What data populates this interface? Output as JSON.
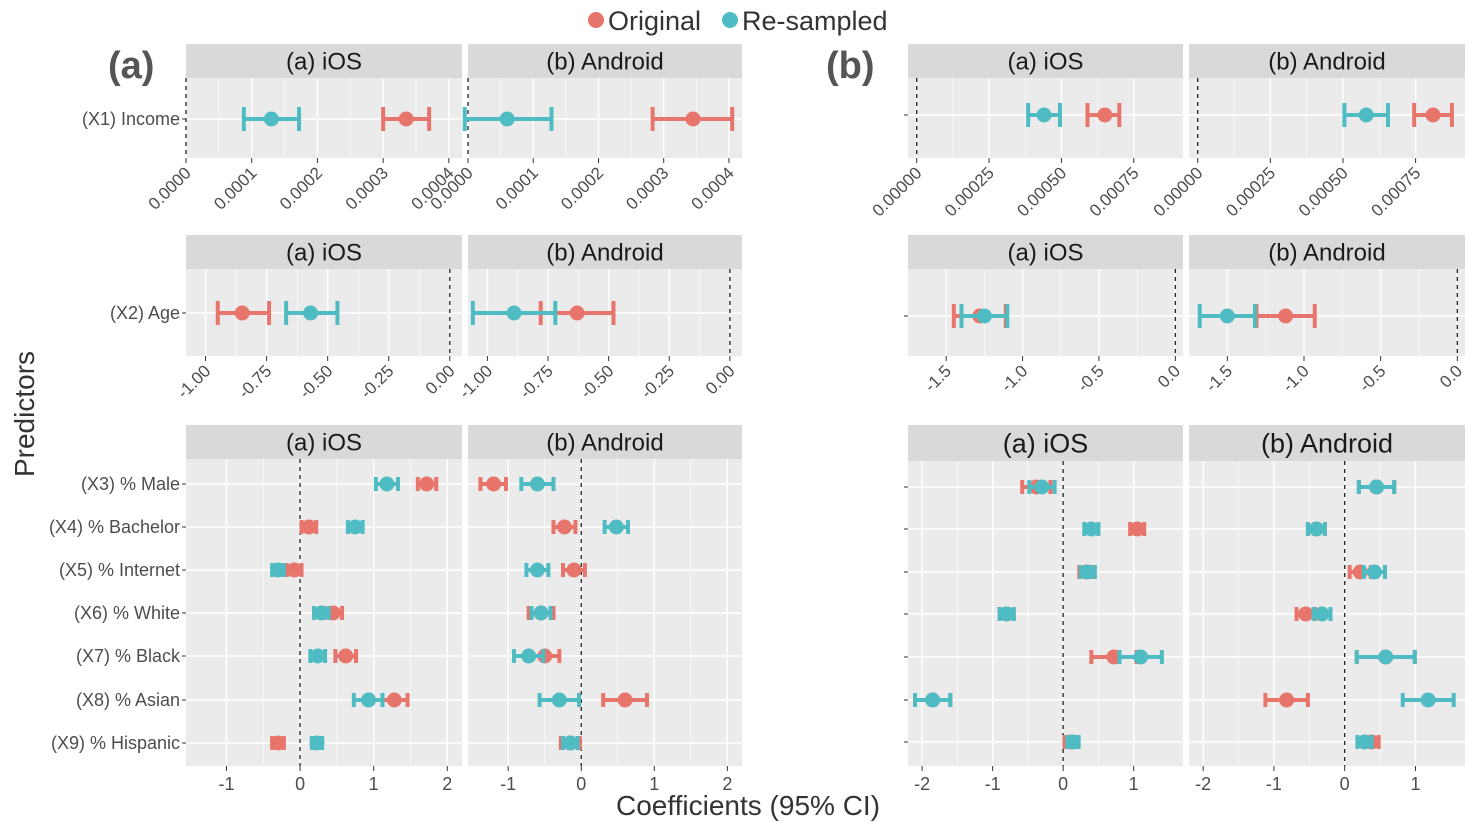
{
  "legend": {
    "items": [
      {
        "label": "Original",
        "color": "#E8756B"
      },
      {
        "label": "Re-sampled",
        "color": "#4FBBC2"
      }
    ]
  },
  "axes_titles": {
    "x": "Coefficients (95% CI)",
    "y": "Predictors"
  },
  "colors": {
    "original": "#E8756B",
    "resampled": "#4FBBC2",
    "panel_bg": "#EBEBEB",
    "strip_bg": "#D9D9D9",
    "grid": "#FFFFFF"
  },
  "chart_data": [
    {
      "group": "(a)",
      "row": "income",
      "type": "scatter",
      "predictors": [
        "(X1) Income"
      ],
      "xlim": [
        -0.0,
        0.00042
      ],
      "ticks": [
        0.0,
        0.0001,
        0.0002,
        0.0003,
        0.0004
      ],
      "tick_labels": [
        "0.0000",
        "0.0001",
        "0.0002",
        "0.0003",
        "0.0004"
      ],
      "facets": [
        {
          "label": "(a) iOS",
          "original": [
            {
              "est": 0.000335,
              "lo": 0.0003,
              "hi": 0.00037
            }
          ],
          "resampled": [
            {
              "est": 0.00013,
              "lo": 8.8e-05,
              "hi": 0.000172
            }
          ]
        },
        {
          "label": "(b) Android",
          "original": [
            {
              "est": 0.000345,
              "lo": 0.000283,
              "hi": 0.000405
            }
          ],
          "resampled": [
            {
              "est": 6e-05,
              "lo": -5e-06,
              "hi": 0.000128
            }
          ]
        }
      ]
    },
    {
      "group": "(a)",
      "row": "age",
      "type": "scatter",
      "predictors": [
        "(X2) Age"
      ],
      "xlim": [
        -1.08,
        0.05
      ],
      "ticks": [
        -1.0,
        -0.75,
        -0.5,
        -0.25,
        0.0
      ],
      "tick_labels": [
        "-1.00",
        "-0.75",
        "-0.50",
        "-0.25",
        "0.00"
      ],
      "facets": [
        {
          "label": "(a) iOS",
          "original": [
            {
              "est": -0.85,
              "lo": -0.95,
              "hi": -0.74
            }
          ],
          "resampled": [
            {
              "est": -0.57,
              "lo": -0.67,
              "hi": -0.46
            }
          ]
        },
        {
          "label": "(b) Android",
          "original": [
            {
              "est": -0.63,
              "lo": -0.78,
              "hi": -0.48
            }
          ],
          "resampled": [
            {
              "est": -0.89,
              "lo": -1.06,
              "hi": -0.72
            }
          ]
        }
      ]
    },
    {
      "group": "(a)",
      "row": "demographics",
      "type": "scatter",
      "predictors": [
        "(X3) % Male",
        "(X4) % Bachelor",
        "(X5) % Internet",
        "(X6) % White",
        "(X7) % Black",
        "(X8) % Asian",
        "(X9) % Hispanic"
      ],
      "xlim": [
        -1.55,
        2.2
      ],
      "ticks": [
        -1,
        0,
        1,
        2
      ],
      "tick_labels": [
        "-1",
        "0",
        "1",
        "2"
      ],
      "facets": [
        {
          "label": "(a) iOS",
          "original": [
            {
              "est": 1.72,
              "lo": 1.6,
              "hi": 1.85
            },
            {
              "est": 0.12,
              "lo": 0.02,
              "hi": 0.22
            },
            {
              "est": -0.08,
              "lo": -0.18,
              "hi": 0.02
            },
            {
              "est": 0.45,
              "lo": 0.33,
              "hi": 0.57
            },
            {
              "est": 0.62,
              "lo": 0.48,
              "hi": 0.76
            },
            {
              "est": 1.28,
              "lo": 1.12,
              "hi": 1.46
            },
            {
              "est": -0.3,
              "lo": -0.38,
              "hi": -0.22
            }
          ],
          "resampled": [
            {
              "est": 1.18,
              "lo": 1.03,
              "hi": 1.33
            },
            {
              "est": 0.75,
              "lo": 0.65,
              "hi": 0.85
            },
            {
              "est": -0.3,
              "lo": -0.38,
              "hi": -0.22
            },
            {
              "est": 0.29,
              "lo": 0.19,
              "hi": 0.39
            },
            {
              "est": 0.24,
              "lo": 0.14,
              "hi": 0.34
            },
            {
              "est": 0.93,
              "lo": 0.73,
              "hi": 1.12
            },
            {
              "est": 0.23,
              "lo": 0.16,
              "hi": 0.3
            }
          ]
        },
        {
          "label": "(b) Android",
          "original": [
            {
              "est": -1.2,
              "lo": -1.38,
              "hi": -1.03
            },
            {
              "est": -0.23,
              "lo": -0.38,
              "hi": -0.08
            },
            {
              "est": -0.1,
              "lo": -0.25,
              "hi": 0.05
            },
            {
              "est": -0.55,
              "lo": -0.72,
              "hi": -0.38
            },
            {
              "est": -0.5,
              "lo": -0.7,
              "hi": -0.3
            },
            {
              "est": 0.6,
              "lo": 0.3,
              "hi": 0.9
            },
            {
              "est": -0.15,
              "lo": -0.28,
              "hi": -0.02
            }
          ],
          "resampled": [
            {
              "est": -0.6,
              "lo": -0.82,
              "hi": -0.38
            },
            {
              "est": 0.48,
              "lo": 0.32,
              "hi": 0.64
            },
            {
              "est": -0.6,
              "lo": -0.75,
              "hi": -0.45
            },
            {
              "est": -0.55,
              "lo": -0.68,
              "hi": -0.42
            },
            {
              "est": -0.72,
              "lo": -0.92,
              "hi": -0.52
            },
            {
              "est": -0.3,
              "lo": -0.57,
              "hi": -0.03
            },
            {
              "est": -0.15,
              "lo": -0.25,
              "hi": -0.05
            }
          ]
        }
      ]
    },
    {
      "group": "(b)",
      "row": "income",
      "type": "scatter",
      "predictors": [
        ""
      ],
      "xlim": [
        -3e-05,
        0.00092
      ],
      "ticks": [
        0.0,
        0.00025,
        0.0005,
        0.00075
      ],
      "tick_labels": [
        "0.00000",
        "0.00025",
        "0.00050",
        "0.00075"
      ],
      "facets": [
        {
          "label": "(a) iOS",
          "original": [
            {
              "est": 0.00065,
              "lo": 0.00059,
              "hi": 0.0007
            }
          ],
          "resampled": [
            {
              "est": 0.00044,
              "lo": 0.000385,
              "hi": 0.000495
            }
          ]
        },
        {
          "label": "(b) Android",
          "original": [
            {
              "est": 0.00081,
              "lo": 0.000745,
              "hi": 0.000875
            }
          ],
          "resampled": [
            {
              "est": 0.00058,
              "lo": 0.000505,
              "hi": 0.000655
            }
          ]
        }
      ]
    },
    {
      "group": "(b)",
      "row": "age",
      "type": "scatter",
      "predictors": [
        ""
      ],
      "xlim": [
        -1.75,
        0.05
      ],
      "ticks": [
        -1.5,
        -1.0,
        -0.5,
        0.0
      ],
      "tick_labels": [
        "-1.5",
        "-1.0",
        "-0.5",
        "0.0"
      ],
      "facets": [
        {
          "label": "(a) iOS",
          "original": [
            {
              "est": -1.28,
              "lo": -1.45,
              "hi": -1.11
            }
          ],
          "resampled": [
            {
              "est": -1.25,
              "lo": -1.4,
              "hi": -1.1
            }
          ]
        },
        {
          "label": "(b) Android",
          "original": [
            {
              "est": -1.12,
              "lo": -1.31,
              "hi": -0.93
            }
          ],
          "resampled": [
            {
              "est": -1.5,
              "lo": -1.68,
              "hi": -1.32
            }
          ]
        }
      ]
    },
    {
      "group": "(b)",
      "row": "demographics",
      "type": "scatter",
      "predictors": [
        "",
        "",
        "",
        "",
        "",
        "",
        ""
      ],
      "xlim": [
        -2.2,
        1.7
      ],
      "ticks": [
        -2,
        -1,
        0,
        1
      ],
      "tick_labels": [
        "-2",
        "-1",
        "0",
        "1"
      ],
      "facets": [
        {
          "label": "(a) iOS",
          "original": [
            {
              "est": -0.38,
              "lo": -0.58,
              "hi": -0.18
            },
            {
              "est": 1.05,
              "lo": 0.95,
              "hi": 1.15
            },
            {
              "est": 0.33,
              "lo": 0.23,
              "hi": 0.43
            },
            {
              "est": -0.8,
              "lo": -0.9,
              "hi": -0.7
            },
            {
              "est": 0.72,
              "lo": 0.4,
              "hi": 1.04
            },
            {
              "est": -1.85,
              "lo": -2.1,
              "hi": -1.6
            },
            {
              "est": 0.1,
              "lo": 0.02,
              "hi": 0.18
            }
          ],
          "resampled": [
            {
              "est": -0.3,
              "lo": -0.48,
              "hi": -0.12
            },
            {
              "est": 0.4,
              "lo": 0.3,
              "hi": 0.5
            },
            {
              "est": 0.35,
              "lo": 0.25,
              "hi": 0.45
            },
            {
              "est": -0.8,
              "lo": -0.9,
              "hi": -0.7
            },
            {
              "est": 1.1,
              "lo": 0.8,
              "hi": 1.4
            },
            {
              "est": -1.85,
              "lo": -2.1,
              "hi": -1.6
            },
            {
              "est": 0.14,
              "lo": 0.06,
              "hi": 0.22
            }
          ]
        },
        {
          "label": "(b) Android",
          "original": [
            {
              "est": 0.45,
              "lo": 0.2,
              "hi": 0.7
            },
            {
              "est": -0.4,
              "lo": -0.52,
              "hi": -0.28
            },
            {
              "est": 0.22,
              "lo": 0.07,
              "hi": 0.37
            },
            {
              "est": -0.55,
              "lo": -0.68,
              "hi": -0.42
            },
            {
              "est": 0.58,
              "lo": 0.17,
              "hi": 0.99
            },
            {
              "est": -0.82,
              "lo": -1.12,
              "hi": -0.52
            },
            {
              "est": 0.38,
              "lo": 0.28,
              "hi": 0.48
            }
          ],
          "resampled": [
            {
              "est": 0.45,
              "lo": 0.2,
              "hi": 0.7
            },
            {
              "est": -0.4,
              "lo": -0.52,
              "hi": -0.28
            },
            {
              "est": 0.42,
              "lo": 0.27,
              "hi": 0.57
            },
            {
              "est": -0.32,
              "lo": -0.44,
              "hi": -0.2
            },
            {
              "est": 0.58,
              "lo": 0.17,
              "hi": 0.99
            },
            {
              "est": 1.18,
              "lo": 0.82,
              "hi": 1.54
            },
            {
              "est": 0.28,
              "lo": 0.18,
              "hi": 0.38
            }
          ]
        }
      ]
    }
  ],
  "group_labels": [
    "(a)",
    "(b)"
  ]
}
